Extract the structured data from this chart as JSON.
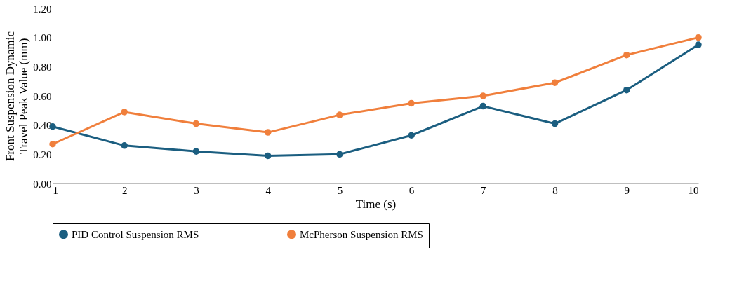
{
  "chart_data": {
    "type": "line",
    "xlabel": "Time (s)",
    "ylabel": "Front Suspension Dynamic Travel Peak Value (mm)",
    "x": [
      1,
      2,
      3,
      4,
      5,
      6,
      7,
      8,
      9,
      10
    ],
    "series": [
      {
        "name": "PID Control Suspension RMS",
        "color": "#1b5e80",
        "values": [
          0.39,
          0.26,
          0.22,
          0.19,
          0.2,
          0.33,
          0.53,
          0.41,
          0.64,
          0.95
        ]
      },
      {
        "name": "McPherson Suspension RMS",
        "color": "#f07f3c",
        "values": [
          0.27,
          0.49,
          0.41,
          0.35,
          0.47,
          0.55,
          0.6,
          0.69,
          0.88,
          1.0
        ]
      }
    ],
    "xlim": [
      1,
      10
    ],
    "xticks": [
      1,
      2,
      3,
      4,
      5,
      6,
      7,
      8,
      9,
      10
    ],
    "ylim": [
      0,
      1.2
    ],
    "yticks": [
      {
        "value": 0,
        "label": "0.00"
      },
      {
        "value": 0.2,
        "label": "0.20"
      },
      {
        "value": 0.4,
        "label": "0.40"
      },
      {
        "value": 0.6,
        "label": "0.60"
      },
      {
        "value": 0.8,
        "label": "0.80"
      },
      {
        "value": 1.0,
        "label": "1.00"
      },
      {
        "value": 1.2,
        "label": "1.20"
      }
    ],
    "grid": false,
    "legend": "bottom",
    "marker": "circle",
    "line_style": "solid"
  }
}
